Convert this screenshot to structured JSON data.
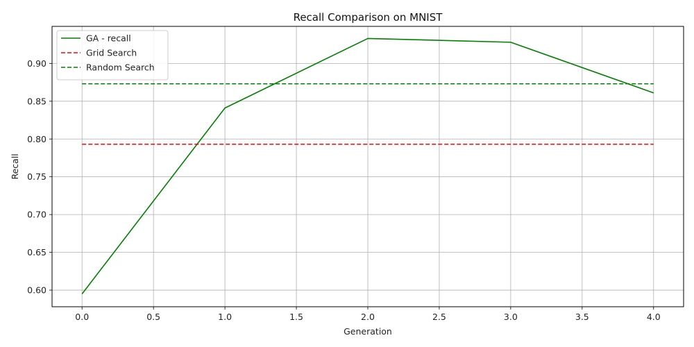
{
  "chart_data": {
    "type": "line",
    "title": "Recall Comparison on MNIST",
    "xlabel": "Generation",
    "ylabel": "Recall",
    "xlim": [
      -0.21,
      4.21
    ],
    "ylim": [
      0.578,
      0.949
    ],
    "xticks": [
      0.0,
      0.5,
      1.0,
      1.5,
      2.0,
      2.5,
      3.0,
      3.5,
      4.0
    ],
    "xtick_labels": [
      "0.0",
      "0.5",
      "1.0",
      "1.5",
      "2.0",
      "2.5",
      "3.0",
      "3.5",
      "4.0"
    ],
    "yticks": [
      0.6,
      0.65,
      0.7,
      0.75,
      0.8,
      0.85,
      0.9
    ],
    "ytick_labels": [
      "0.60",
      "0.65",
      "0.70",
      "0.75",
      "0.80",
      "0.85",
      "0.90"
    ],
    "grid": true,
    "legend_position": "top-left",
    "series": [
      {
        "name": "GA - recall",
        "style": "solid",
        "color": "#008000",
        "x": [
          0,
          1,
          2,
          3,
          4
        ],
        "y": [
          0.595,
          0.841,
          0.933,
          0.928,
          0.861
        ]
      },
      {
        "name": "Grid Search",
        "style": "dashed",
        "color": "#ff0000",
        "x": [
          0,
          4
        ],
        "y": [
          0.793,
          0.793
        ]
      },
      {
        "name": "Random Search",
        "style": "dashed",
        "color": "#008000",
        "x": [
          0,
          4
        ],
        "y": [
          0.873,
          0.873
        ]
      }
    ]
  }
}
